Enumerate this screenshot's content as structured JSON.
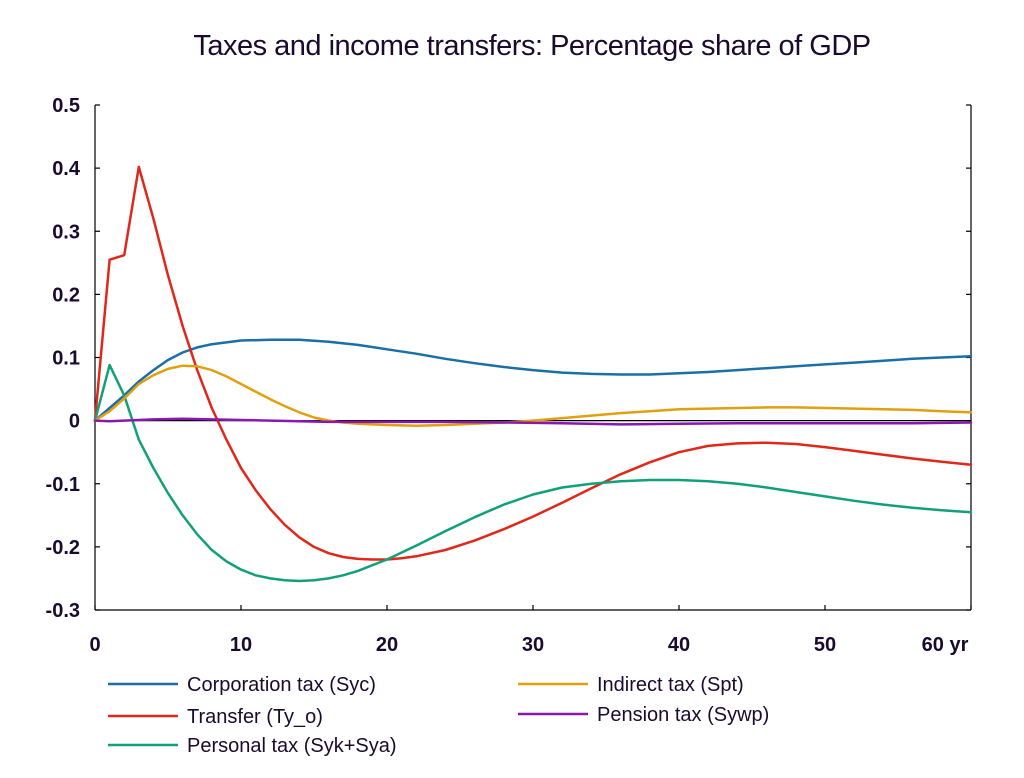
{
  "chart_data": {
    "type": "line",
    "title": "Taxes and income transfers: Percentage share of GDP",
    "xlabel": "",
    "ylabel": "",
    "xlim": [
      0,
      60
    ],
    "ylim": [
      -0.3,
      0.5
    ],
    "x_ticks": [
      "0",
      "10",
      "20",
      "30",
      "40",
      "50",
      "60 yr"
    ],
    "y_ticks": [
      "0.5",
      "0.4",
      "0.3",
      "0.2",
      "0.1",
      "0",
      "-0.1",
      "-0.2",
      "-0.3"
    ],
    "grid": false,
    "legend_position": "bottom",
    "series": [
      {
        "name": "Corporation tax (Syc)",
        "color": "#1a6fa8",
        "x": [
          0,
          1,
          2,
          3,
          4,
          5,
          6,
          7,
          8,
          10,
          12,
          14,
          16,
          18,
          20,
          22,
          24,
          26,
          28,
          30,
          32,
          34,
          36,
          38,
          40,
          42,
          44,
          46,
          48,
          50,
          52,
          54,
          56,
          58,
          60
        ],
        "values": [
          0,
          0.02,
          0.04,
          0.062,
          0.08,
          0.096,
          0.108,
          0.116,
          0.121,
          0.127,
          0.128,
          0.128,
          0.125,
          0.12,
          0.113,
          0.106,
          0.098,
          0.091,
          0.085,
          0.08,
          0.076,
          0.074,
          0.073,
          0.073,
          0.075,
          0.077,
          0.08,
          0.083,
          0.086,
          0.089,
          0.092,
          0.095,
          0.098,
          0.1,
          0.102
        ]
      },
      {
        "name": "Transfer (Ty_o)",
        "color": "#e0281a",
        "x": [
          0,
          1,
          2,
          3,
          4,
          5,
          6,
          7,
          8,
          9,
          10,
          11,
          12,
          13,
          14,
          15,
          16,
          17,
          18,
          19,
          20,
          21,
          22,
          24,
          26,
          28,
          30,
          32,
          34,
          36,
          38,
          40,
          42,
          44,
          46,
          48,
          50,
          52,
          54,
          56,
          58,
          60
        ],
        "values": [
          0,
          0.255,
          0.262,
          0.402,
          0.32,
          0.23,
          0.15,
          0.08,
          0.02,
          -0.03,
          -0.075,
          -0.11,
          -0.14,
          -0.165,
          -0.185,
          -0.2,
          -0.21,
          -0.216,
          -0.219,
          -0.22,
          -0.22,
          -0.218,
          -0.215,
          -0.205,
          -0.19,
          -0.172,
          -0.152,
          -0.13,
          -0.107,
          -0.085,
          -0.066,
          -0.05,
          -0.04,
          -0.036,
          -0.035,
          -0.037,
          -0.042,
          -0.048,
          -0.054,
          -0.06,
          -0.065,
          -0.07
        ]
      },
      {
        "name": "Personal tax (Syk+Sya)",
        "color": "#12a07a",
        "x": [
          0,
          1,
          2,
          3,
          4,
          5,
          6,
          7,
          8,
          9,
          10,
          11,
          12,
          13,
          14,
          15,
          16,
          17,
          18,
          20,
          22,
          24,
          26,
          28,
          30,
          32,
          34,
          36,
          38,
          40,
          42,
          44,
          46,
          48,
          50,
          52,
          54,
          56,
          58,
          60
        ],
        "values": [
          0,
          0.088,
          0.04,
          -0.03,
          -0.075,
          -0.115,
          -0.15,
          -0.18,
          -0.205,
          -0.223,
          -0.236,
          -0.245,
          -0.25,
          -0.253,
          -0.254,
          -0.253,
          -0.25,
          -0.245,
          -0.238,
          -0.22,
          -0.198,
          -0.175,
          -0.153,
          -0.133,
          -0.117,
          -0.106,
          -0.1,
          -0.096,
          -0.094,
          -0.094,
          -0.096,
          -0.1,
          -0.106,
          -0.113,
          -0.12,
          -0.127,
          -0.133,
          -0.138,
          -0.142,
          -0.145
        ]
      },
      {
        "name": "Indirect tax (Spt)",
        "color": "#e0a010",
        "x": [
          0,
          1,
          2,
          3,
          4,
          5,
          6,
          7,
          8,
          9,
          10,
          11,
          12,
          13,
          14,
          15,
          16,
          17,
          18,
          19,
          20,
          22,
          24,
          26,
          28,
          30,
          32,
          34,
          36,
          38,
          40,
          42,
          44,
          46,
          48,
          50,
          52,
          54,
          56,
          58,
          60
        ],
        "values": [
          0,
          0.015,
          0.035,
          0.058,
          0.072,
          0.082,
          0.087,
          0.086,
          0.08,
          0.07,
          0.058,
          0.046,
          0.034,
          0.023,
          0.013,
          0.005,
          0,
          -0.003,
          -0.005,
          -0.006,
          -0.007,
          -0.008,
          -0.007,
          -0.005,
          -0.003,
          0,
          0.004,
          0.008,
          0.012,
          0.015,
          0.018,
          0.019,
          0.02,
          0.021,
          0.021,
          0.02,
          0.019,
          0.018,
          0.017,
          0.015,
          0.013
        ]
      },
      {
        "name": "Pension tax (Sywp)",
        "color": "#8a18b0",
        "x": [
          0,
          1,
          2,
          4,
          6,
          8,
          10,
          12,
          14,
          16,
          18,
          20,
          24,
          28,
          32,
          36,
          40,
          44,
          48,
          52,
          56,
          60
        ],
        "values": [
          0,
          -0.001,
          0,
          0.002,
          0.003,
          0.002,
          0.001,
          0,
          -0.001,
          -0.002,
          -0.002,
          -0.002,
          -0.002,
          -0.003,
          -0.004,
          -0.006,
          -0.005,
          -0.004,
          -0.004,
          -0.004,
          -0.004,
          -0.003
        ]
      }
    ]
  }
}
